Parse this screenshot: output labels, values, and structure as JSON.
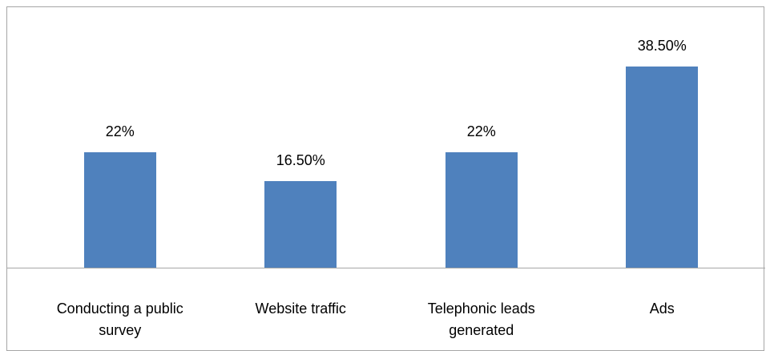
{
  "chart_data": {
    "type": "bar",
    "categories": [
      "Conducting a public survey",
      "Website traffic",
      "Telephonic leads generated",
      "Ads"
    ],
    "values": [
      22,
      16.5,
      22,
      38.5
    ],
    "value_labels": [
      "22%",
      "16.50%",
      "22%",
      "38.50%"
    ],
    "color": "#4f81bd",
    "ylim": [
      0,
      40
    ]
  }
}
